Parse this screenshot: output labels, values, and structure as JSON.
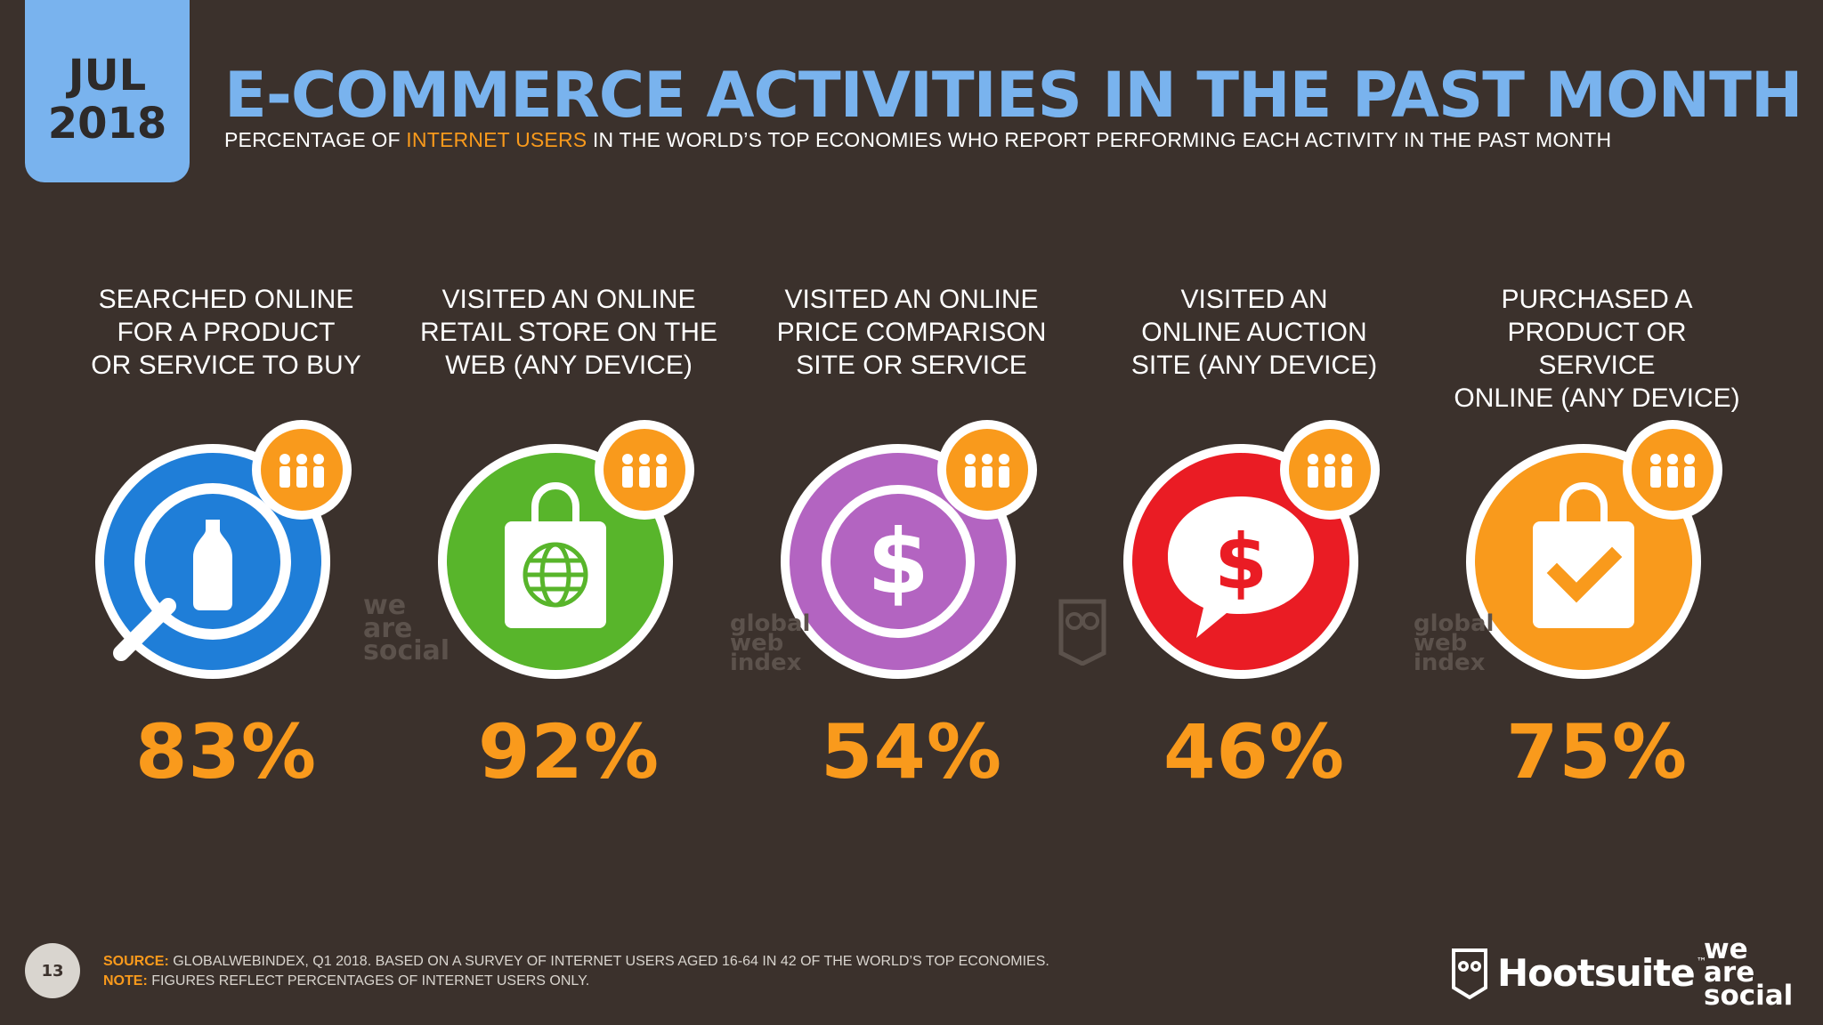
{
  "date": {
    "month": "JUL",
    "year": "2018"
  },
  "title": "E-COMMERCE ACTIVITIES IN THE PAST MONTH",
  "subtitle": {
    "before": "PERCENTAGE OF ",
    "highlight": "INTERNET USERS",
    "after": " IN THE WORLD’S TOP ECONOMIES WHO REPORT PERFORMING EACH ACTIVITY IN THE PAST MONTH"
  },
  "colors": {
    "background": "#3b312c",
    "title": "#79b3ee",
    "accent": "#f99a1c",
    "blue": "#1f7ed8",
    "green": "#58b52b",
    "purple": "#b364c1",
    "red": "#ea1c24",
    "orange": "#f99a1c"
  },
  "cards": [
    {
      "label": "SEARCHED ONLINE\nFOR A PRODUCT\nOR SERVICE TO BUY",
      "value": "83%",
      "icon": "magnifier-bottle-icon",
      "color": "#1f7ed8"
    },
    {
      "label": "VISITED AN ONLINE\nRETAIL STORE ON THE\nWEB (ANY DEVICE)",
      "value": "92%",
      "icon": "shopping-bag-globe-icon",
      "color": "#58b52b"
    },
    {
      "label": "VISITED AN ONLINE\nPRICE COMPARISON\nSITE OR SERVICE",
      "value": "54%",
      "icon": "dollar-coin-icon",
      "color": "#b364c1"
    },
    {
      "label": "VISITED AN\nONLINE AUCTION\nSITE (ANY DEVICE)",
      "value": "46%",
      "icon": "dollar-speech-bubble-icon",
      "color": "#ea1c24"
    },
    {
      "label": "PURCHASED A\nPRODUCT OR SERVICE\nONLINE (ANY DEVICE)",
      "value": "75%",
      "icon": "shopping-bag-check-icon",
      "color": "#f99a1c"
    }
  ],
  "watermarks": {
    "was": "we\nare\nsocial",
    "gwi": "global\nweb\nindex"
  },
  "footer": {
    "page": "13",
    "source_label": "SOURCE:",
    "source_text": " GLOBALWEBINDEX, Q1 2018. BASED ON A SURVEY OF INTERNET USERS AGED 16-64 IN 42 OF THE WORLD’S TOP ECONOMIES.",
    "note_label": "NOTE:",
    "note_text": " FIGURES REFLECT PERCENTAGES OF INTERNET USERS ONLY.",
    "hootsuite": "Hootsuite",
    "tm": "™",
    "was_logo": "we\nare\nsocial"
  }
}
